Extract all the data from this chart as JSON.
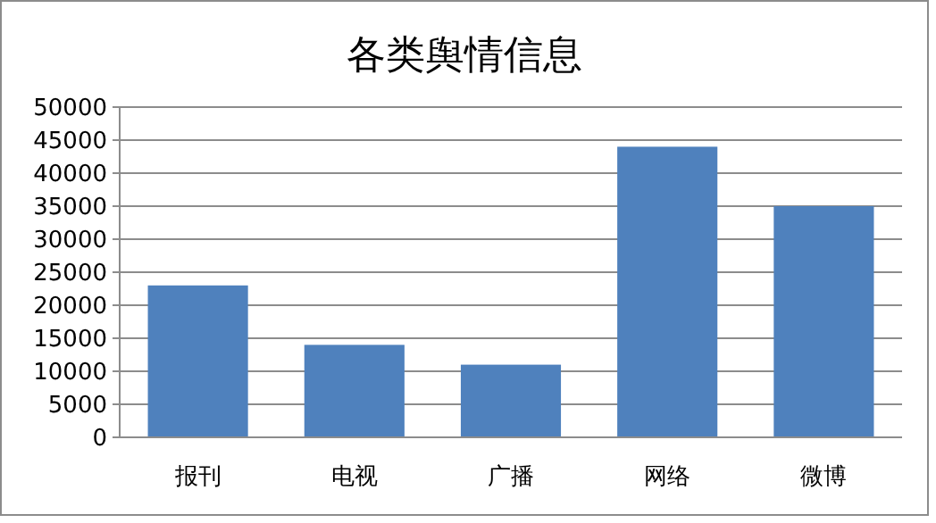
{
  "chart_data": {
    "type": "bar",
    "title": "各类舆情信息",
    "categories": [
      "报刊",
      "电视",
      "广播",
      "网络",
      "微博"
    ],
    "values": [
      23000,
      14000,
      11000,
      44000,
      35000
    ],
    "color": "#4f81bd",
    "ylim": [
      0,
      50000
    ],
    "yticks": [
      0,
      5000,
      10000,
      15000,
      20000,
      25000,
      30000,
      35000,
      40000,
      45000,
      50000
    ],
    "grid": "y"
  }
}
